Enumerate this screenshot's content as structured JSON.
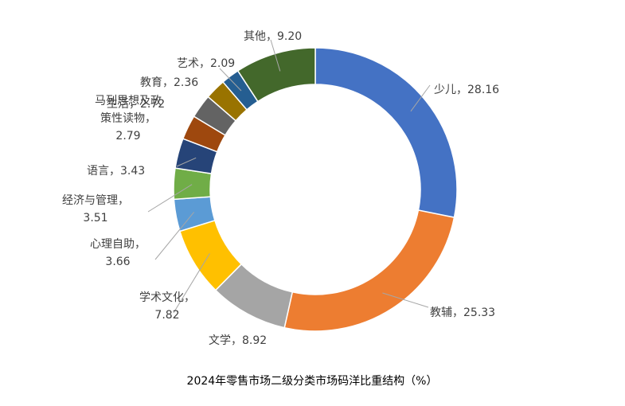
{
  "chart_data": {
    "type": "pie",
    "subtype": "doughnut",
    "title": "2024年零售市场二级分类市场码洋比重结构（%）",
    "categories": [
      "少儿",
      "教辅",
      "文学",
      "学术文化",
      "心理自助",
      "经济与管理",
      "语言",
      "马列思想及政策性读物",
      "生活",
      "教育",
      "艺术",
      "其他"
    ],
    "values": [
      28.16,
      25.33,
      8.92,
      7.82,
      3.66,
      3.51,
      3.43,
      2.79,
      2.72,
      2.36,
      2.09,
      9.2
    ],
    "labels": [
      [
        "少儿，28.16"
      ],
      [
        "教辅，25.33"
      ],
      [
        "文学，8.92"
      ],
      [
        "学术文化，",
        "7.82"
      ],
      [
        "心理自助，",
        "3.66"
      ],
      [
        "经济与管理，",
        "3.51"
      ],
      [
        "语言，3.43"
      ],
      [
        "马列思想及政",
        "策性读物，",
        "2.79"
      ],
      [
        "生活，2.72"
      ],
      [
        "教育，2.36"
      ],
      [
        "艺术，2.09"
      ],
      [
        "其他，9.20"
      ]
    ],
    "colors": [
      "#4472C4",
      "#ED7D31",
      "#A5A5A5",
      "#FFC000",
      "#5B9BD5",
      "#70AD47",
      "#264478",
      "#9E480E",
      "#636363",
      "#997300",
      "#255E91",
      "#43682B"
    ],
    "legend": "none"
  }
}
